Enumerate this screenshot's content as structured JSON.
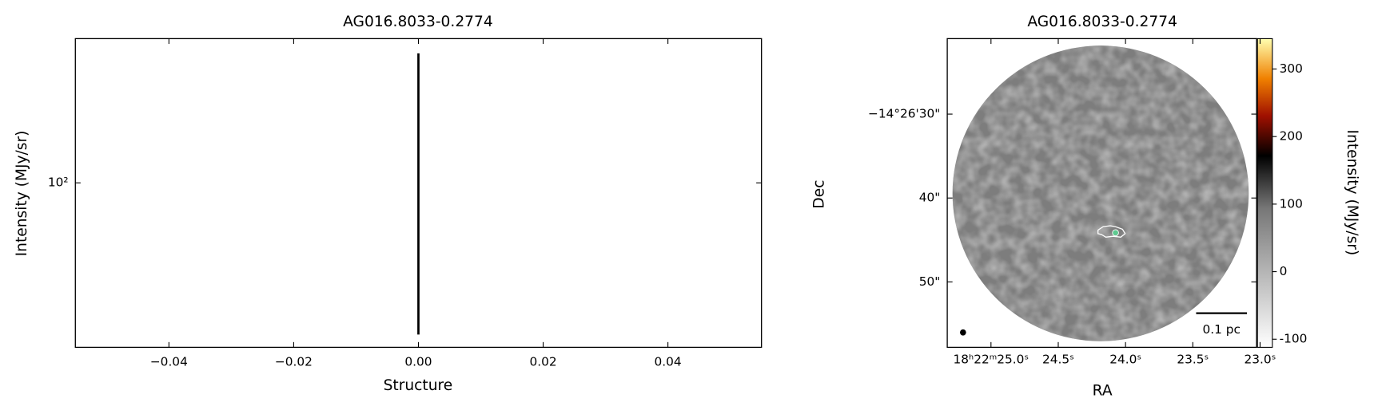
{
  "chart_data": [
    {
      "type": "line",
      "title": "AG016.8033-0.2774",
      "xlabel": "Structure",
      "ylabel": "Intensity (MJy/sr)",
      "x": [
        0,
        0
      ],
      "values": [
        26,
        316
      ],
      "color": "#000000",
      "xlim": [
        -0.055,
        0.055
      ],
      "xticks": [
        {
          "value": -0.04,
          "label": "−0.04"
        },
        {
          "value": -0.02,
          "label": "−0.02"
        },
        {
          "value": 0,
          "label": "0.00"
        },
        {
          "value": 0.02,
          "label": "0.02"
        },
        {
          "value": 0.04,
          "label": "0.04"
        }
      ],
      "ylim": [
        23.2,
        360
      ],
      "yscale": "log",
      "yticks": [
        {
          "value": 100,
          "label": "10²"
        }
      ]
    },
    {
      "type": "image",
      "title": "AG016.8033-0.2774",
      "xlabel": "RA",
      "ylabel": "Dec",
      "colorbar_label": "Intensity (MJy/sr)",
      "xlim": [
        25.325,
        23.026
      ],
      "xticks": [
        {
          "value": 25.0,
          "label": "18ʰ22ᵐ25.0ˢ"
        },
        {
          "value": 24.5,
          "label": "24.5ˢ"
        },
        {
          "value": 24.0,
          "label": "24.0ˢ"
        },
        {
          "value": 23.5,
          "label": "23.5ˢ"
        },
        {
          "value": 23.0,
          "label": "23.0ˢ"
        }
      ],
      "ylim": [
        21.0,
        57.8
      ],
      "yticks": [
        {
          "value": 30,
          "label": "−14°26'30\""
        },
        {
          "value": 40,
          "label": "40\""
        },
        {
          "value": 50,
          "label": "50\""
        }
      ],
      "clim": [
        -112,
        345
      ],
      "cticks": [
        -100,
        0,
        100,
        200,
        300
      ],
      "scalebar_label": "0.1 pc"
    }
  ]
}
